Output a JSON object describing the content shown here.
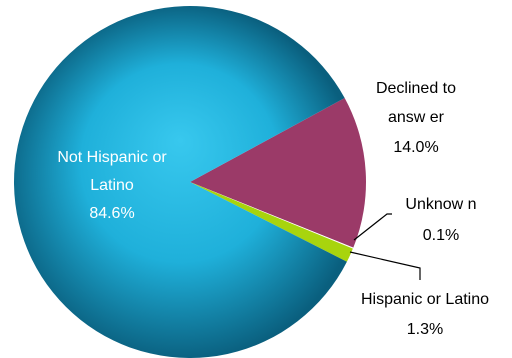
{
  "chart_data": {
    "type": "pie",
    "title": "",
    "unit": "%",
    "slices": [
      {
        "name": "Not Hispanic or Latino",
        "value": 84.6,
        "color": "#33c3e8",
        "name_lines": [
          "Not Hispanic or",
          "Latino"
        ],
        "value_label": "84.6%"
      },
      {
        "name": "Declined to answer",
        "value": 14.0,
        "color": "#9b3a68",
        "name_lines": [
          "Declined to",
          "answ er"
        ],
        "value_label": "14.0%"
      },
      {
        "name": "Unknown",
        "value": 0.1,
        "color": "#ffffff",
        "name_lines": [
          "Unknow n"
        ],
        "value_label": "0.1%"
      },
      {
        "name": "Hispanic or Latino",
        "value": 1.3,
        "color": "#a8d40d",
        "name_lines": [
          "Hispanic or Latino"
        ],
        "value_label": "1.3%"
      }
    ]
  }
}
